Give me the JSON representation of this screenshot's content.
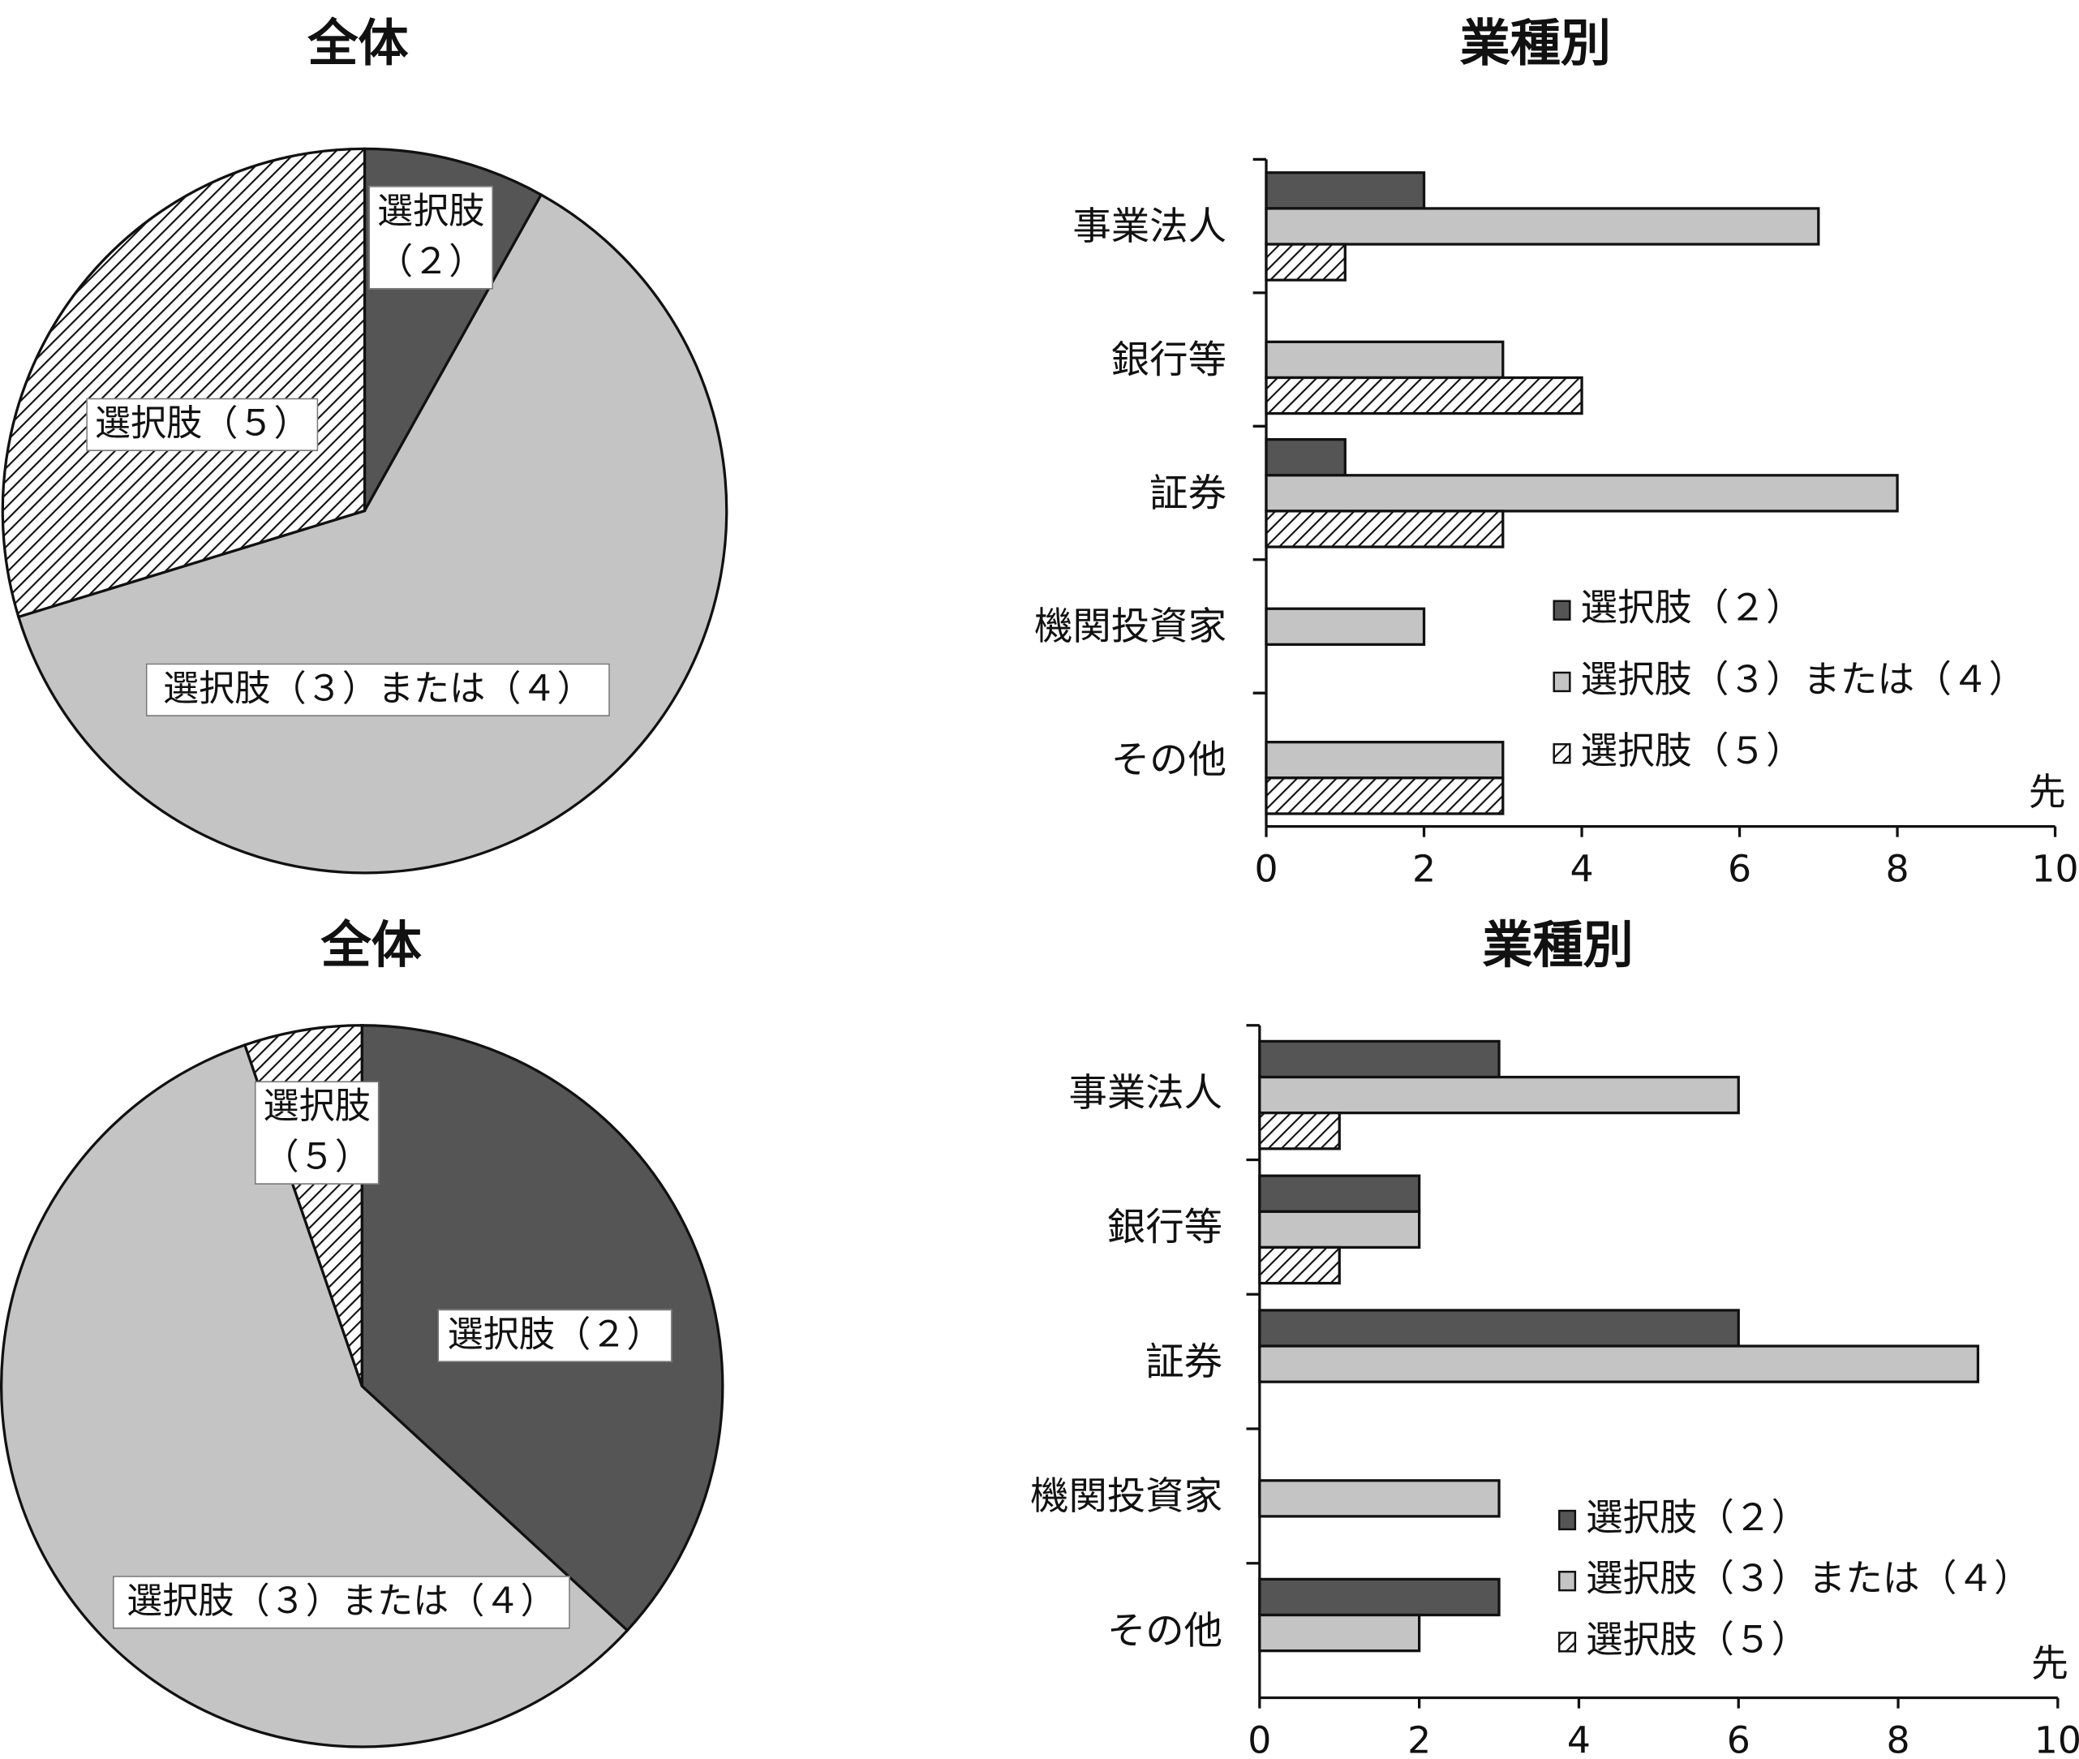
{
  "chart_data": [
    {
      "type": "pie",
      "title": "全体",
      "categories": [
        "選択肢（２）",
        "選択肢（３）または（４）",
        "選択肢（５）"
      ],
      "values": [
        3,
        23,
        11
      ],
      "colors": [
        "#555555",
        "#c4c4c4",
        "hatch"
      ]
    },
    {
      "type": "bar",
      "orientation": "horizontal",
      "title": "業種別",
      "categories": [
        "事業法人",
        "銀行等",
        "証券",
        "機関投資家",
        "その他"
      ],
      "series": [
        {
          "name": "選択肢（２）",
          "color": "#555555",
          "values": [
            2,
            0,
            1,
            0,
            0
          ]
        },
        {
          "name": "選択肢（３）または（４）",
          "color": "#c4c4c4",
          "values": [
            7,
            3,
            8,
            2,
            3
          ]
        },
        {
          "name": "選択肢（５）",
          "color": "hatch",
          "values": [
            1,
            4,
            3,
            0,
            3
          ]
        }
      ],
      "xlim": [
        0,
        10
      ],
      "xticks": [
        0,
        2,
        4,
        6,
        8,
        10
      ],
      "x_unit_label": "先",
      "legend": "lower right"
    },
    {
      "type": "pie",
      "title": "全体",
      "categories": [
        "選択肢（２）",
        "選択肢（３）または（４）",
        "選択肢（５）"
      ],
      "values": [
        14,
        22,
        2
      ],
      "colors": [
        "#555555",
        "#c4c4c4",
        "hatch"
      ]
    },
    {
      "type": "bar",
      "orientation": "horizontal",
      "title": "業種別",
      "categories": [
        "事業法人",
        "銀行等",
        "証券",
        "機関投資家",
        "その他"
      ],
      "series": [
        {
          "name": "選択肢（２）",
          "color": "#555555",
          "values": [
            3,
            2,
            6,
            0,
            3
          ]
        },
        {
          "name": "選択肢（３）または（４）",
          "color": "#c4c4c4",
          "values": [
            6,
            2,
            9,
            3,
            2
          ]
        },
        {
          "name": "選択肢（５）",
          "color": "hatch",
          "values": [
            1,
            1,
            0,
            0,
            0
          ]
        }
      ],
      "xlim": [
        0,
        10
      ],
      "xticks": [
        0,
        2,
        4,
        6,
        8,
        10
      ],
      "x_unit_label": "先",
      "legend": "lower right"
    }
  ]
}
